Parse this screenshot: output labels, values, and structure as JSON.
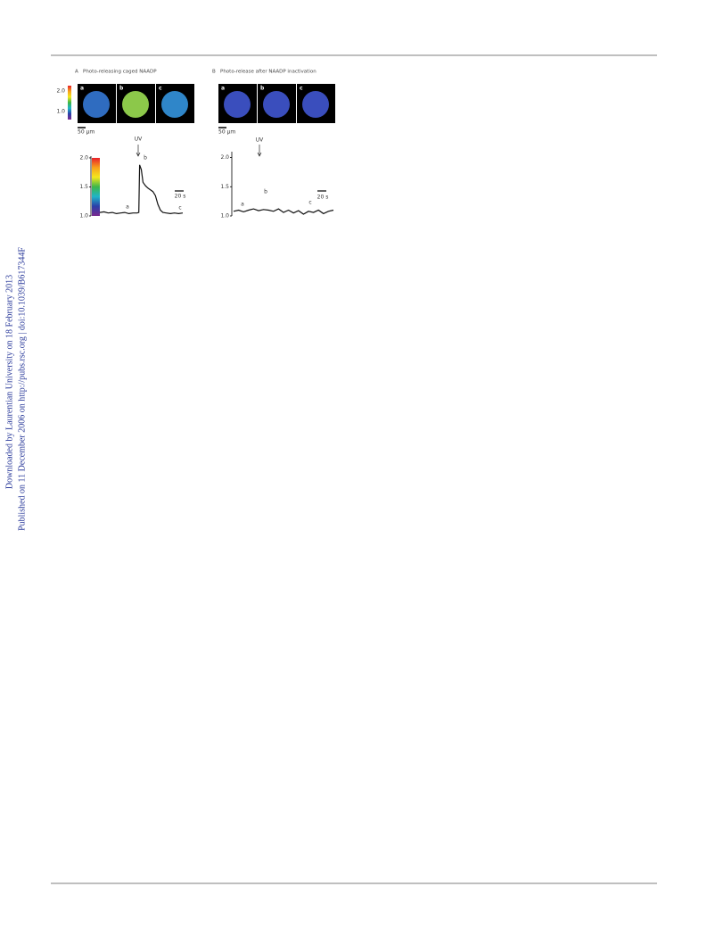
{
  "sidebar": {
    "line1": "Downloaded by Laurentian University on 18 February 2013",
    "line2": "Published on 11 December 2006 on http://pubs.rsc.org | doi:10.1039/B617344F"
  },
  "figure": {
    "panels": [
      {
        "label": "A",
        "title": "Photo-releasing caged NAADP",
        "colorbar_ticks": [
          "2.0",
          "1.0"
        ],
        "images": [
          {
            "label": "a",
            "color": "#2f6cc0"
          },
          {
            "label": "b",
            "color": "#8cc84a"
          },
          {
            "label": "c",
            "color": "#2f86c9"
          }
        ],
        "scale_bar": "50 µm",
        "plot": {
          "type": "line",
          "color": "#111111",
          "xlim": [
            0,
            100
          ],
          "ylim": [
            1,
            2.03
          ],
          "yticks": [
            {
              "value": 2,
              "label": "2.0"
            },
            {
              "value": 1.5,
              "label": "1.5"
            },
            {
              "value": 1,
              "label": "1.0"
            }
          ],
          "x": [
            0,
            5,
            10,
            15,
            20,
            25,
            30,
            35,
            40,
            45,
            47,
            48,
            50,
            52,
            55,
            58,
            61,
            64,
            67,
            70,
            73,
            76,
            80,
            85,
            90,
            95,
            100
          ],
          "values": [
            1.06,
            1.07,
            1.05,
            1.06,
            1.04,
            1.05,
            1.06,
            1.04,
            1.05,
            1.05,
            1.06,
            1.88,
            1.8,
            1.58,
            1.52,
            1.48,
            1.45,
            1.42,
            1.35,
            1.2,
            1.1,
            1.06,
            1.05,
            1.04,
            1.05,
            1.04,
            1.05
          ],
          "annotations": [
            "UV",
            "a",
            "b",
            "c",
            "20 s"
          ],
          "colorbar": true
        }
      },
      {
        "label": "B",
        "title": "Photo-release after NAADP inactivation",
        "images": [
          {
            "label": "a",
            "color": "#3a4ebd"
          },
          {
            "label": "b",
            "color": "#3a4ebd"
          },
          {
            "label": "c",
            "color": "#3a4ebd"
          }
        ],
        "scale_bar": "50 µm",
        "plot": {
          "type": "line",
          "color": "#111111",
          "xlim": [
            0,
            100
          ],
          "ylim": [
            1,
            2.1
          ],
          "yticks": [
            {
              "value": 2,
              "label": "2.0"
            },
            {
              "value": 1.5,
              "label": "1.5"
            },
            {
              "value": 1,
              "label": "1.0"
            }
          ],
          "x": [
            0,
            5,
            10,
            15,
            20,
            25,
            30,
            35,
            40,
            45,
            50,
            55,
            60,
            65,
            70,
            75,
            80,
            85,
            90,
            95,
            100
          ],
          "values": [
            1.08,
            1.1,
            1.07,
            1.1,
            1.12,
            1.09,
            1.11,
            1.1,
            1.08,
            1.12,
            1.06,
            1.1,
            1.05,
            1.09,
            1.03,
            1.08,
            1.06,
            1.1,
            1.04,
            1.08,
            1.1
          ],
          "annotations": [
            "UV",
            "a",
            "b",
            "c",
            "20 s"
          ],
          "colorbar": false
        }
      }
    ]
  }
}
